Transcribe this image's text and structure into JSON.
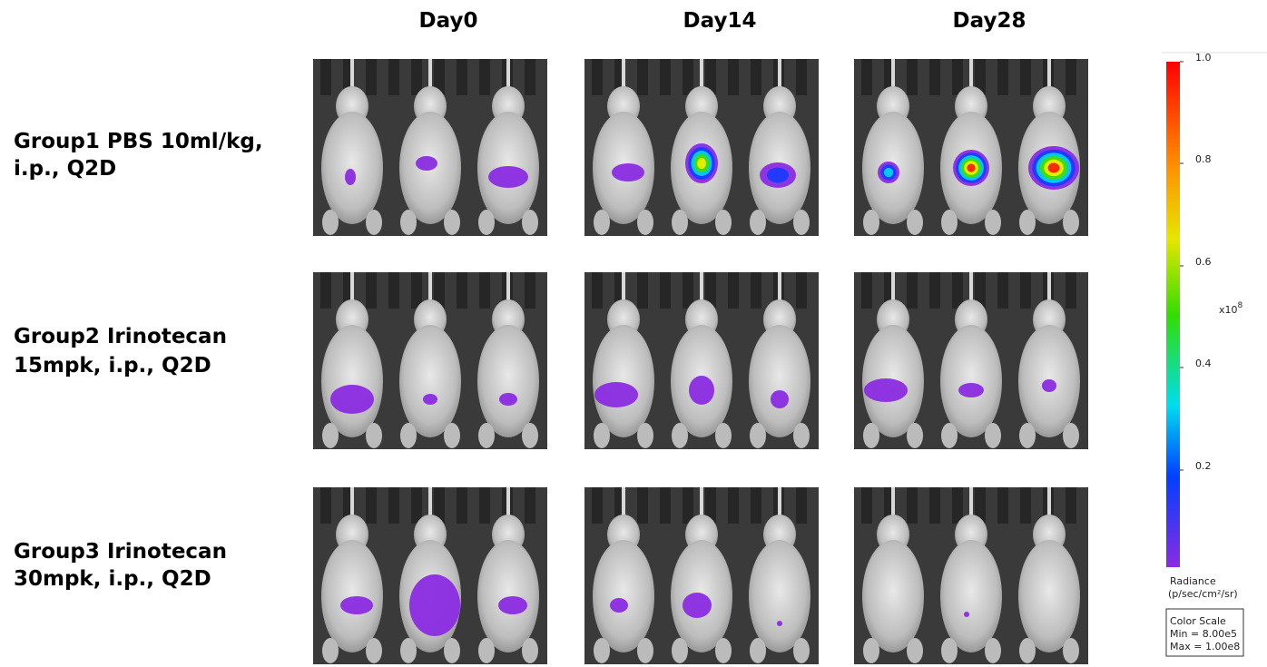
{
  "columns": [
    "Day0",
    "Day14",
    "Day28"
  ],
  "groups": [
    {
      "lines": [
        "Group1 PBS 10ml/kg,",
        "i.p., Q2D"
      ]
    },
    {
      "lines": [
        "Group2 Irinotecan",
        "15mpk, i.p., Q2D"
      ]
    },
    {
      "lines": [
        "Group3 Irinotecan",
        "30mpk, i.p., Q2D"
      ]
    }
  ],
  "color_scale": {
    "ticks": [
      "1.0",
      "0.8",
      "0.6",
      "0.4",
      "0.2"
    ],
    "multiplier": "x10",
    "exponent": "8",
    "quantity": "Radiance",
    "unit": "(p/sec/cm²/sr)",
    "box": [
      "Color Scale",
      "Min = 8.00e5",
      "Max = 1.00e8"
    ]
  }
}
